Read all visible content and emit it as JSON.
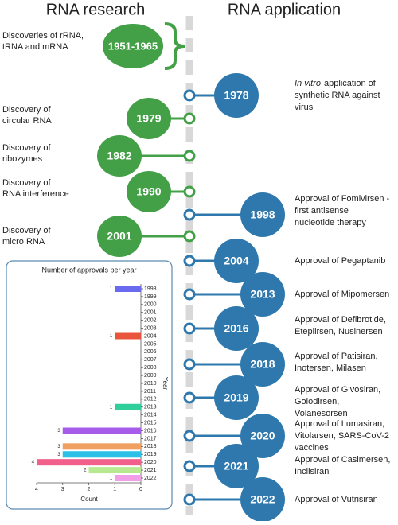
{
  "header": {
    "left": "RNA research",
    "right": "RNA application"
  },
  "research": [
    {
      "year": "1951-1965",
      "lines": [
        "Discoveries of rRNA,",
        "tRNA and mRNA"
      ]
    },
    {
      "year": "1979",
      "lines": [
        "Discovery of",
        "circular RNA"
      ]
    },
    {
      "year": "1982",
      "lines": [
        "Discovery of",
        "ribozymes"
      ]
    },
    {
      "year": "1990",
      "lines": [
        "Discovery of",
        "RNA interference"
      ]
    },
    {
      "year": "2001",
      "lines": [
        "Discovery of",
        "micro RNA"
      ]
    }
  ],
  "applications": [
    {
      "year": "1978",
      "italic_prefix": "In vitro",
      "lines": [
        "application of",
        "synthetic RNA against",
        "virus"
      ]
    },
    {
      "year": "1998",
      "lines": [
        "Approval of Fomivirsen -",
        "first antisense",
        "nucleotide therapy"
      ]
    },
    {
      "year": "2004",
      "lines": [
        "Approval of Pegaptanib"
      ]
    },
    {
      "year": "2013",
      "lines": [
        "Approval of Mipomersen"
      ]
    },
    {
      "year": "2016",
      "lines": [
        "Approval of Defibrotide,",
        "Eteplirsen, Nusinersen"
      ]
    },
    {
      "year": "2018",
      "lines": [
        "Approval of Patisiran,",
        "Inotersen, Milasen"
      ]
    },
    {
      "year": "2019",
      "lines": [
        "Approval of Givosiran,",
        "Golodirsen,",
        "Volanesorsen"
      ]
    },
    {
      "year": "2020",
      "lines": [
        "Approval of Lumasiran,",
        "Vitolarsen, SARS-CoV-2",
        "vaccines"
      ]
    },
    {
      "year": "2021",
      "lines": [
        "Approval of Casimersen,",
        "Inclisiran"
      ]
    },
    {
      "year": "2022",
      "lines": [
        "Approval of Vutrisiran"
      ]
    }
  ],
  "chart": {
    "type": "bar",
    "title": "Number of approvals per year",
    "xlabel": "Count",
    "ylabel": "Year",
    "categories": [
      "1998",
      "1999",
      "2000",
      "2001",
      "2002",
      "2003",
      "2004",
      "2005",
      "2006",
      "2007",
      "2008",
      "2009",
      "2010",
      "2011",
      "2012",
      "2013",
      "2014",
      "2015",
      "2016",
      "2017",
      "2018",
      "2019",
      "2020",
      "2021",
      "2022"
    ],
    "values": [
      1,
      null,
      null,
      null,
      null,
      null,
      1,
      null,
      null,
      null,
      null,
      null,
      null,
      null,
      null,
      1,
      null,
      null,
      3,
      null,
      3,
      3,
      4,
      2,
      1
    ],
    "colors": [
      "#6a6af0",
      null,
      null,
      null,
      null,
      null,
      "#e8553a",
      null,
      null,
      null,
      null,
      null,
      null,
      null,
      null,
      "#2ecf9a",
      null,
      null,
      "#a65ce8",
      null,
      "#f0a060",
      "#2cc0e6",
      "#f0608a",
      "#b8e890",
      "#f09ee8"
    ],
    "xlim": [
      0,
      4
    ],
    "xticks": [
      0,
      1,
      2,
      3,
      4
    ],
    "x_inverted": true
  }
}
